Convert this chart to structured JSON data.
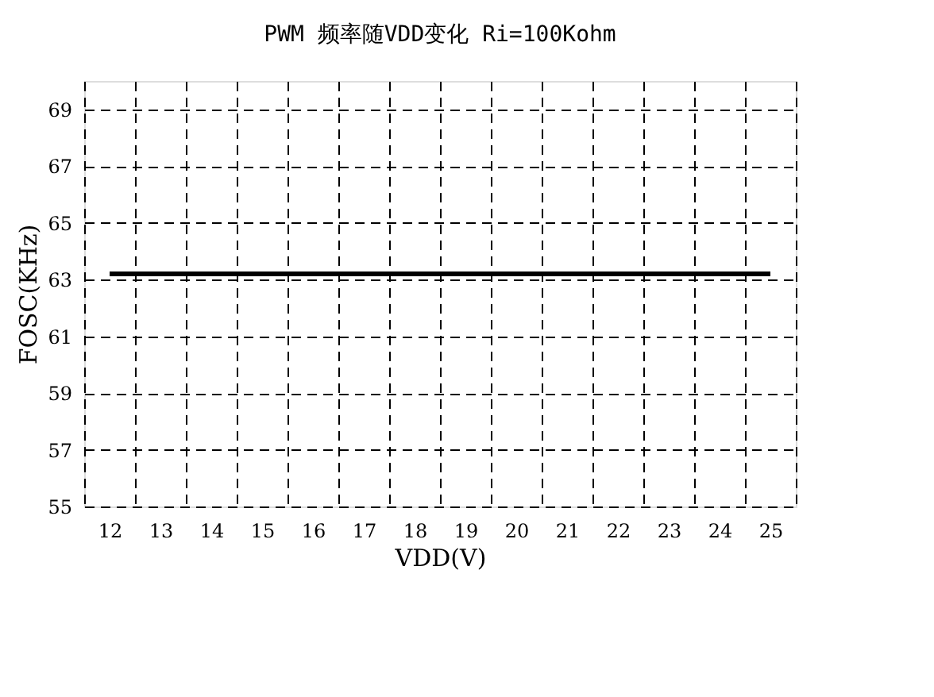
{
  "chart_data": {
    "type": "line",
    "title": "PWM 频率随VDD变化 Ri=100Kohm",
    "xlabel": "VDD(V)",
    "ylabel": "FOSC(KHz)",
    "categories": [
      "12",
      "13",
      "14",
      "15",
      "16",
      "17",
      "18",
      "19",
      "20",
      "21",
      "22",
      "23",
      "24",
      "25"
    ],
    "series": [
      {
        "color": "#000000",
        "values": [
          63.2,
          63.2,
          63.2,
          63.2,
          63.2,
          63.2,
          63.2,
          63.2,
          63.2,
          63.2,
          63.2,
          63.2,
          63.2,
          63.2
        ]
      }
    ],
    "ylim": [
      55,
      70
    ],
    "yticks": [
      55,
      57,
      59,
      61,
      63,
      65,
      67,
      69
    ],
    "grid": true,
    "line_style": "solid",
    "marker": "none"
  }
}
